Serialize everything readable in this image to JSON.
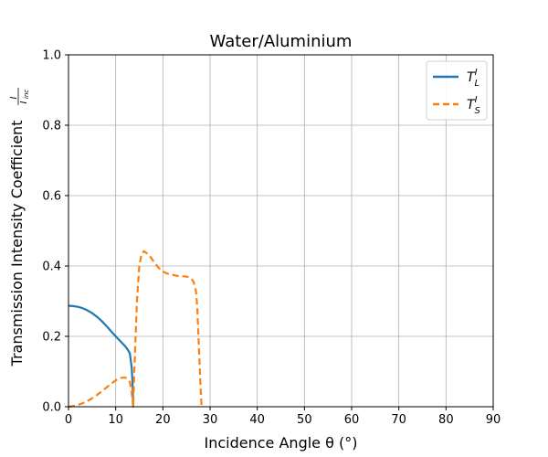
{
  "chart_data": {
    "type": "line",
    "title": "Water/Aluminium",
    "xlabel": "Incidence Angle θ (°)",
    "ylabel": "Transmission Intensity Coefficient",
    "ylabel_fraction_num": "I",
    "ylabel_fraction_den": "I",
    "ylabel_fraction_den_sub": "inc",
    "xlim": [
      0,
      90
    ],
    "ylim": [
      0,
      1.0
    ],
    "xticks": [
      "0",
      "10",
      "20",
      "30",
      "40",
      "50",
      "60",
      "70",
      "80",
      "90"
    ],
    "yticks": [
      "0.0",
      "0.2",
      "0.4",
      "0.6",
      "0.8",
      "1.0"
    ],
    "grid": true,
    "legend_position": "top-right",
    "series": [
      {
        "name": "T",
        "name_sup": "I",
        "name_sub": "L",
        "color": "#1f77b4",
        "style": "solid",
        "x": [
          0,
          1,
          2,
          3,
          4,
          5,
          6,
          7,
          8,
          9,
          10,
          11,
          12,
          12.5,
          13,
          13.4,
          13.6,
          13.7
        ],
        "y": [
          0.287,
          0.286,
          0.284,
          0.28,
          0.274,
          0.266,
          0.256,
          0.244,
          0.23,
          0.215,
          0.2,
          0.186,
          0.172,
          0.163,
          0.152,
          0.11,
          0.06,
          0.0
        ]
      },
      {
        "name": "T",
        "name_sup": "I",
        "name_sub": "S",
        "color": "#ff7f0e",
        "style": "dashed",
        "x": [
          0,
          1,
          2,
          3,
          4,
          5,
          6,
          7,
          8,
          9,
          10,
          11,
          12,
          12.5,
          13,
          13.4,
          13.6,
          13.7,
          14,
          14.5,
          15,
          15.5,
          16,
          17,
          18,
          19,
          20,
          21,
          22,
          23,
          24,
          25,
          26,
          26.5,
          27,
          27.3,
          27.6,
          28,
          28.2
        ],
        "y": [
          0.0,
          0.002,
          0.005,
          0.01,
          0.016,
          0.024,
          0.033,
          0.043,
          0.054,
          0.065,
          0.075,
          0.082,
          0.083,
          0.079,
          0.07,
          0.04,
          0.015,
          0.0,
          0.12,
          0.3,
          0.4,
          0.435,
          0.442,
          0.432,
          0.414,
          0.396,
          0.384,
          0.378,
          0.375,
          0.372,
          0.371,
          0.37,
          0.365,
          0.355,
          0.33,
          0.28,
          0.18,
          0.05,
          0.0
        ]
      }
    ]
  }
}
